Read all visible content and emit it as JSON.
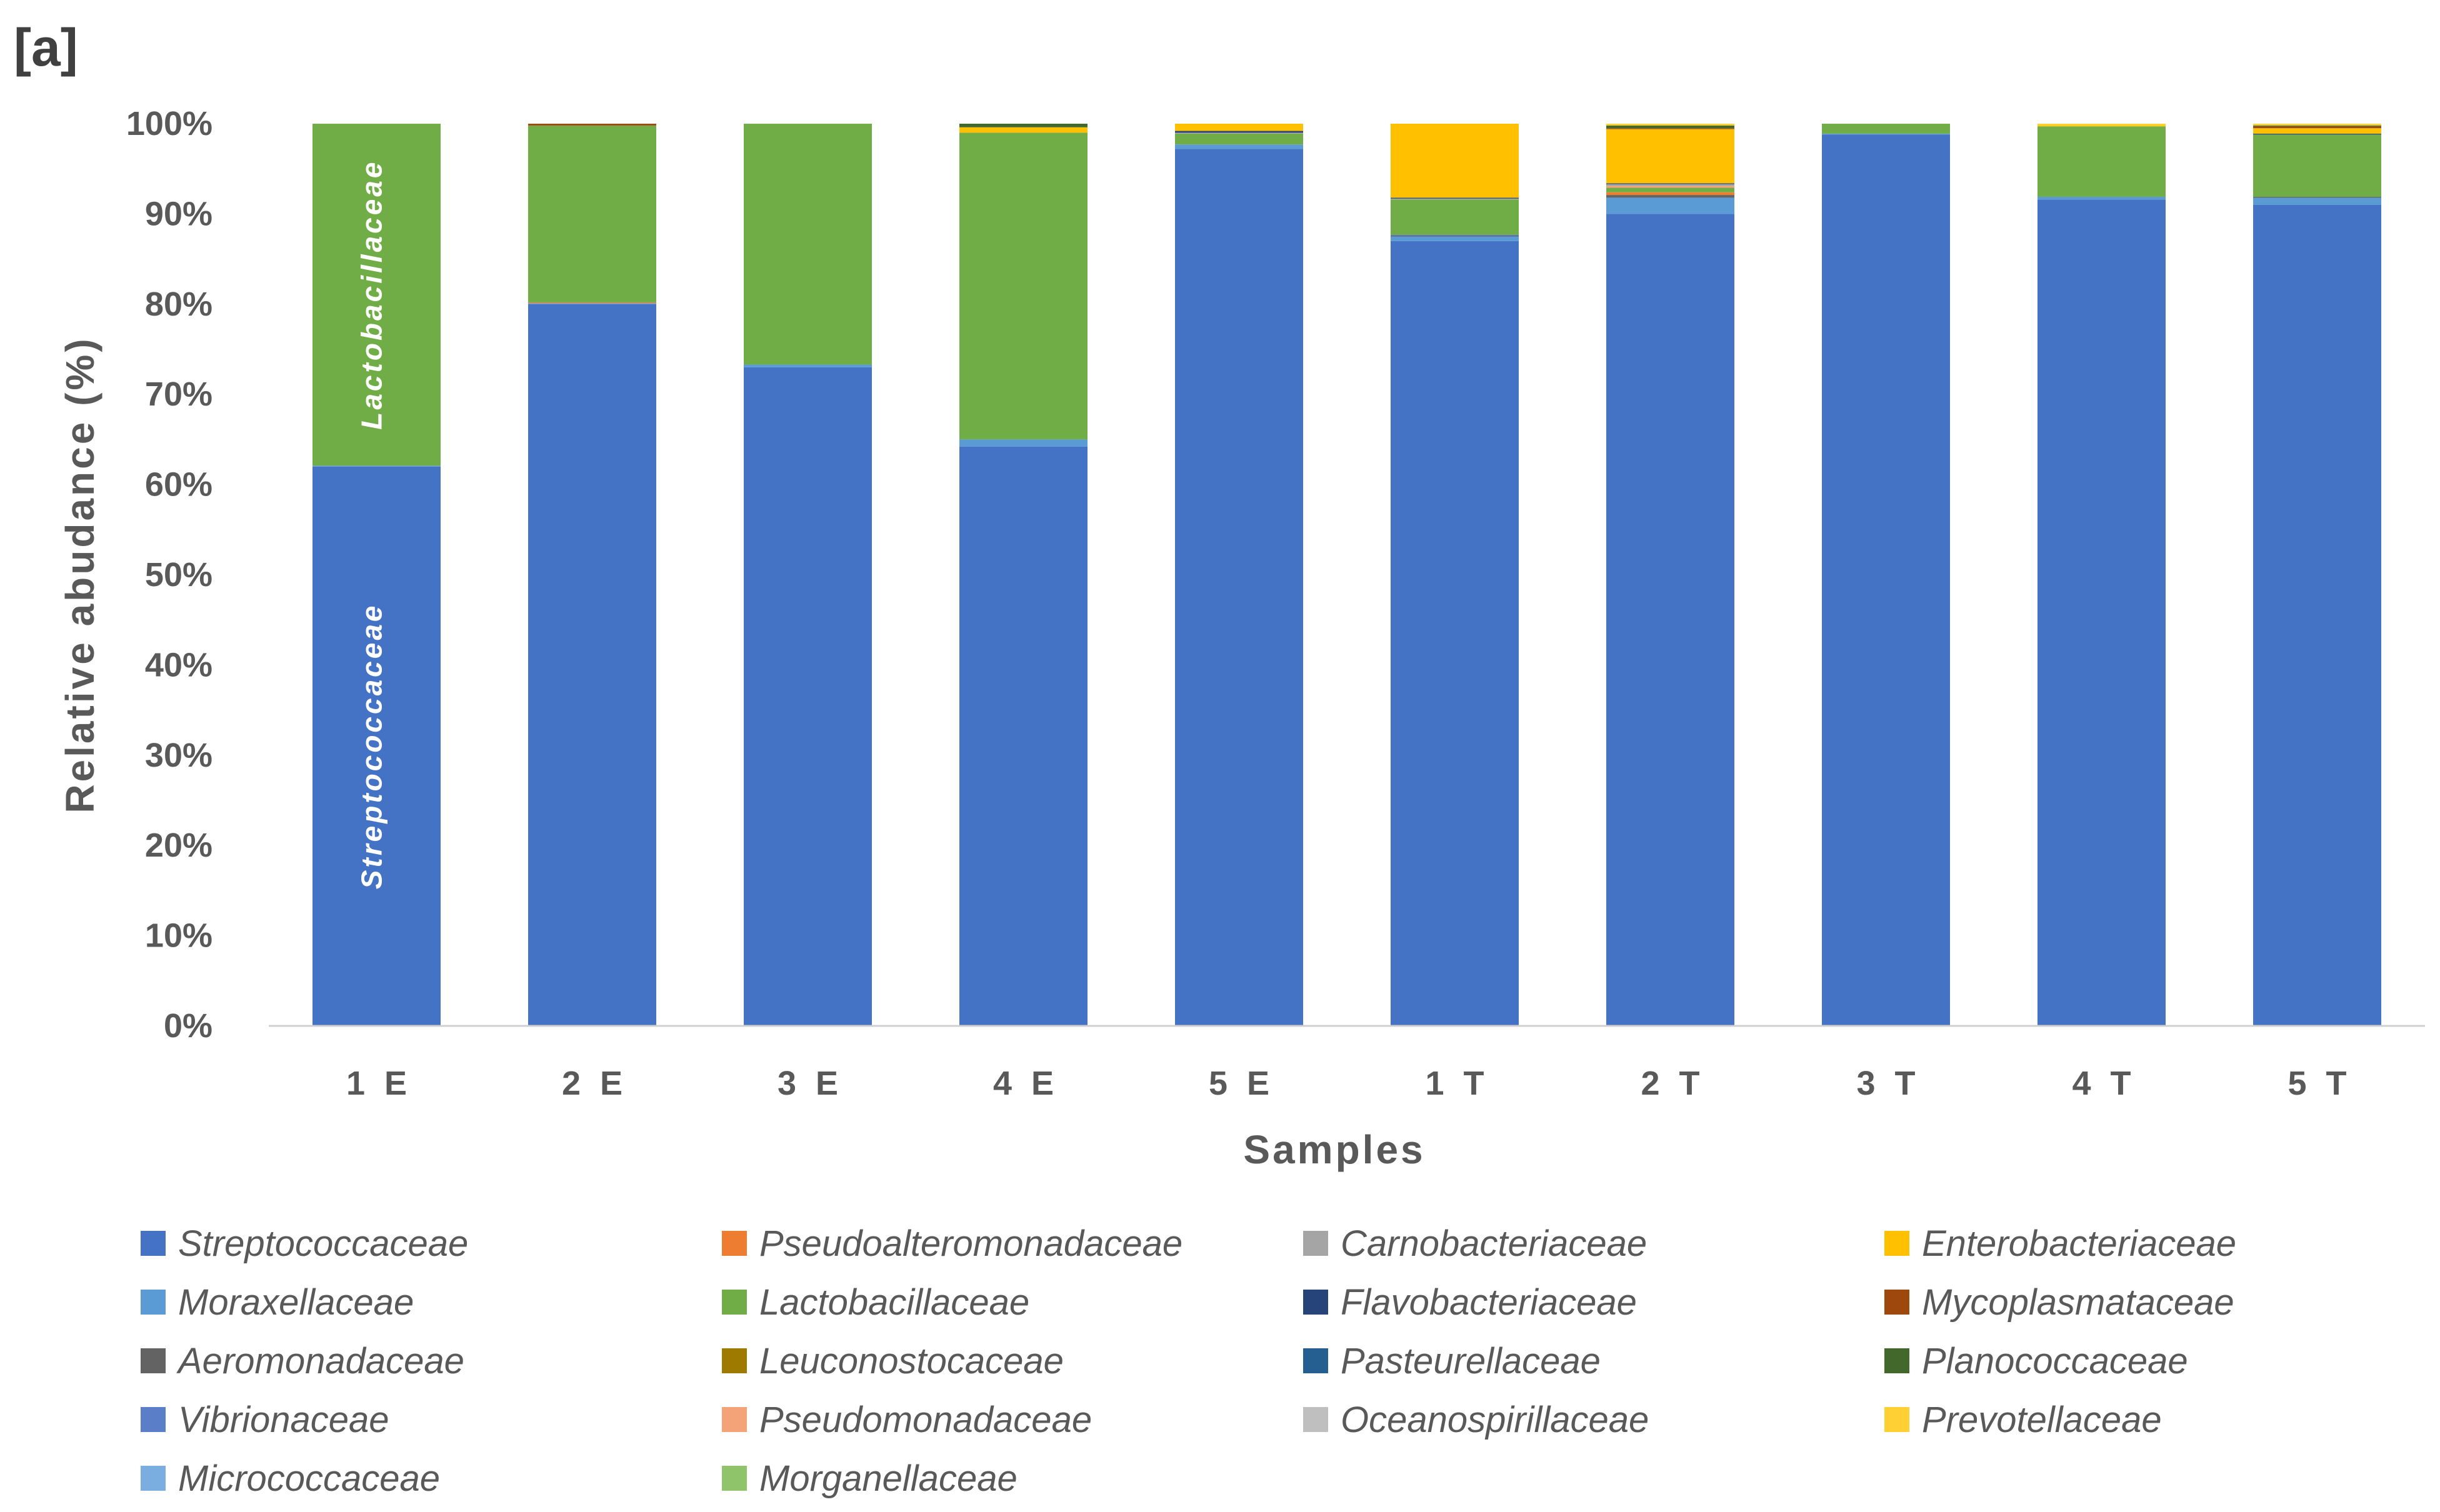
{
  "figure_label": "[a]",
  "chart_data": {
    "type": "bar",
    "stacked": true,
    "xlabel": "Samples",
    "ylabel": "Relative abudance (%)",
    "ylim": [
      0,
      100
    ],
    "yticks": [
      "0%",
      "10%",
      "20%",
      "30%",
      "40%",
      "50%",
      "60%",
      "70%",
      "80%",
      "90%",
      "100%"
    ],
    "categories": [
      "1 E",
      "2 E",
      "3 E",
      "4 E",
      "5 E",
      "1 T",
      "2 T",
      "3 T",
      "4 T",
      "5 T"
    ],
    "annotations": [
      {
        "text": "Streptococcaceae",
        "category": "1 E",
        "series": "Streptococcaceae"
      },
      {
        "text": "Lactobacillaceae",
        "category": "1 E",
        "series": "Lactobacillaceae"
      }
    ],
    "series": [
      {
        "name": "Streptococcaceae",
        "color": "#4472C4",
        "values": [
          62.0,
          80.0,
          73.0,
          64.2,
          97.2,
          87.0,
          90.0,
          98.8,
          91.6,
          91.0
        ]
      },
      {
        "name": "Moraxellaceae",
        "color": "#5B9BD5",
        "values": [
          0.1,
          0.1,
          0.3,
          0.8,
          0.5,
          0.5,
          1.8,
          0.1,
          0.3,
          0.8
        ]
      },
      {
        "name": "Aeromonadaceae",
        "color": "#636363",
        "values": [
          0,
          0,
          0,
          0,
          0,
          0.1,
          0.3,
          0,
          0,
          0.1
        ]
      },
      {
        "name": "Vibrionaceae",
        "color": "#5A7FC8",
        "values": [
          0,
          0,
          0,
          0,
          0,
          0.1,
          0,
          0,
          0,
          0
        ]
      },
      {
        "name": "Micrococcaceae",
        "color": "#7AADE0",
        "values": [
          0,
          0,
          0,
          0,
          0,
          0,
          0,
          0,
          0,
          0
        ]
      },
      {
        "name": "Pseudoalteromonadaceae",
        "color": "#ED7D31",
        "values": [
          0,
          0.1,
          0,
          0,
          0,
          0,
          0.3,
          0,
          0,
          0
        ]
      },
      {
        "name": "Lactobacillaceae",
        "color": "#70AD47",
        "values": [
          37.9,
          19.6,
          26.7,
          34.0,
          1.2,
          3.9,
          0.5,
          1.1,
          7.8,
          6.9
        ]
      },
      {
        "name": "Leuconostocaceae",
        "color": "#9E7B00",
        "values": [
          0,
          0,
          0,
          0,
          0,
          0,
          0,
          0,
          0,
          0
        ]
      },
      {
        "name": "Pseudomonadaceae",
        "color": "#F4A277",
        "values": [
          0,
          0,
          0,
          0,
          0,
          0,
          0.2,
          0,
          0,
          0
        ]
      },
      {
        "name": "Morganellaceae",
        "color": "#8FC46B",
        "values": [
          0,
          0,
          0,
          0,
          0,
          0,
          0,
          0,
          0,
          0
        ]
      },
      {
        "name": "Carnobacteriaceae",
        "color": "#A5A5A5",
        "values": [
          0,
          0,
          0,
          0,
          0.1,
          0.1,
          0.2,
          0,
          0,
          0
        ]
      },
      {
        "name": "Flavobacteriaceae",
        "color": "#264478",
        "values": [
          0,
          0,
          0,
          0,
          0.2,
          0.1,
          0.1,
          0,
          0,
          0.1
        ]
      },
      {
        "name": "Pasteurellaceae",
        "color": "#255E91",
        "values": [
          0,
          0,
          0,
          0,
          0,
          0,
          0,
          0,
          0,
          0
        ]
      },
      {
        "name": "Oceanospirillaceae",
        "color": "#BFBFBF",
        "values": [
          0,
          0,
          0,
          0,
          0,
          0,
          0,
          0,
          0,
          0
        ]
      },
      {
        "name": "Enterobacteriaceae",
        "color": "#FFC000",
        "values": [
          0,
          0,
          0,
          0.6,
          0.8,
          8.2,
          6.0,
          0,
          0.1,
          0.6
        ]
      },
      {
        "name": "Mycoplasmataceae",
        "color": "#9E480E",
        "values": [
          0,
          0.2,
          0,
          0,
          0,
          0,
          0.1,
          0,
          0,
          0.2
        ]
      },
      {
        "name": "Planococcaceae",
        "color": "#43682B",
        "values": [
          0,
          0,
          0,
          0.4,
          0,
          0,
          0.3,
          0,
          0,
          0.1
        ]
      },
      {
        "name": "Prevotellaceae",
        "color": "#FFD033",
        "values": [
          0,
          0,
          0,
          0,
          0,
          0,
          0.2,
          0,
          0.2,
          0.2
        ]
      }
    ]
  },
  "legend": {
    "columns": [
      [
        "Streptococcaceae",
        "Moraxellaceae",
        "Aeromonadaceae",
        "Vibrionaceae",
        "Micrococcaceae"
      ],
      [
        "Pseudoalteromonadaceae",
        "Lactobacillaceae",
        "Leuconostocaceae",
        "Pseudomonadaceae",
        "Morganellaceae"
      ],
      [
        "Carnobacteriaceae",
        "Flavobacteriaceae",
        "Pasteurellaceae",
        "Oceanospirillaceae"
      ],
      [
        "Enterobacteriaceae",
        "Mycoplasmataceae",
        "Planococcaceae",
        "Prevotellaceae"
      ]
    ]
  }
}
